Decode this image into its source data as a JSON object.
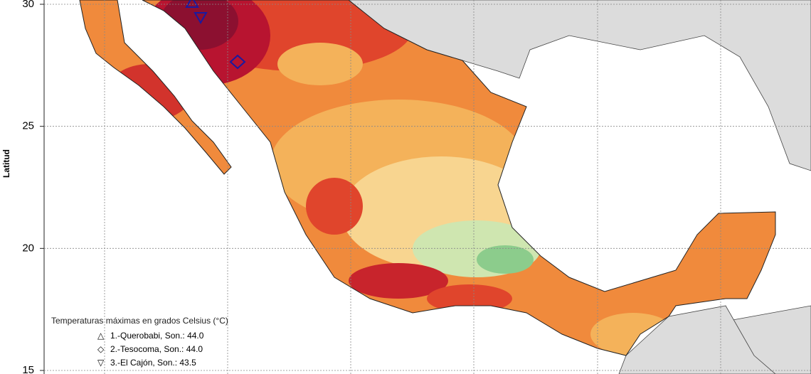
{
  "axis": {
    "label": "Latitud",
    "ticks": [
      30,
      25,
      20,
      15
    ]
  },
  "legend": {
    "title": "Temperaturas máximas en grados Celsius (°C)",
    "items": [
      {
        "symbol": "△",
        "label": "1.-Querobabi, Son.: 44.0"
      },
      {
        "symbol": "◇",
        "label": "2.-Tesocoma, Son.: 44.0"
      },
      {
        "symbol": "▽",
        "label": "3.-El Cajón, Son.: 43.5"
      }
    ]
  }
}
